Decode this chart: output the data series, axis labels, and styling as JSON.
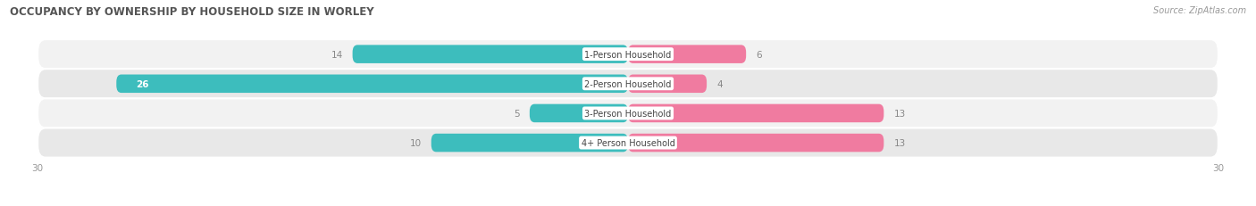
{
  "title": "OCCUPANCY BY OWNERSHIP BY HOUSEHOLD SIZE IN WORLEY",
  "source": "Source: ZipAtlas.com",
  "categories": [
    "1-Person Household",
    "2-Person Household",
    "3-Person Household",
    "4+ Person Household"
  ],
  "owner_values": [
    14,
    26,
    5,
    10
  ],
  "renter_values": [
    6,
    4,
    13,
    13
  ],
  "owner_color": "#3DBDBD",
  "renter_color": "#F07BA0",
  "row_bg_light": "#F2F2F2",
  "row_bg_dark": "#E8E8E8",
  "max_value": 30,
  "label_color": "#888888",
  "title_color": "#555555",
  "figsize": [
    14.06,
    2.32
  ],
  "dpi": 100
}
